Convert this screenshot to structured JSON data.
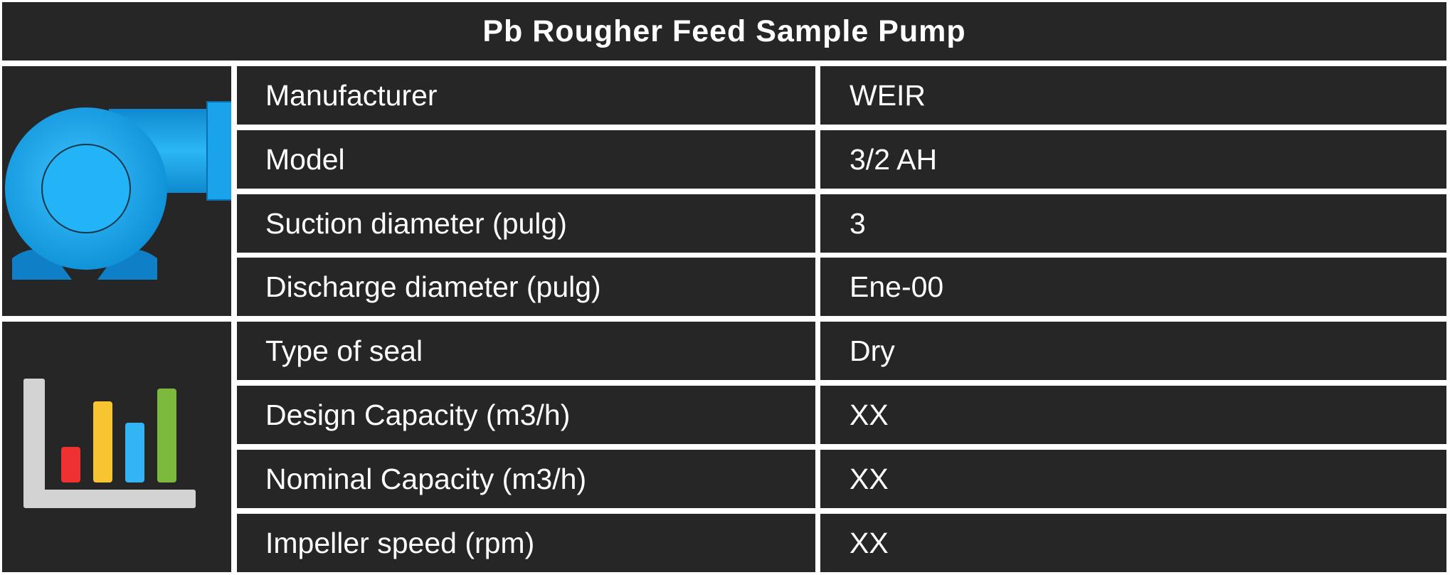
{
  "title": "Pb Rougher Feed Sample Pump",
  "icons": {
    "top": "pump-icon",
    "bottom": "bar-chart-icon",
    "bar_colors": [
      "#ef3131",
      "#f7c531",
      "#33b5f5",
      "#7cba3d"
    ],
    "pump_color": "#1faaf0"
  },
  "specs": [
    {
      "label": "Manufacturer",
      "value": "WEIR"
    },
    {
      "label": "Model",
      "value": "3/2 AH"
    },
    {
      "label": "Suction diameter (pulg)",
      "value": "3"
    },
    {
      "label": "Discharge diameter (pulg)",
      "value": "Ene-00"
    },
    {
      "label": "Type of seal",
      "value": "Dry"
    },
    {
      "label": "Design Capacity (m3/h)",
      "value": "XX"
    },
    {
      "label": "Nominal Capacity (m3/h)",
      "value": "XX"
    },
    {
      "label": "Impeller speed (rpm)",
      "value": "XX"
    }
  ]
}
